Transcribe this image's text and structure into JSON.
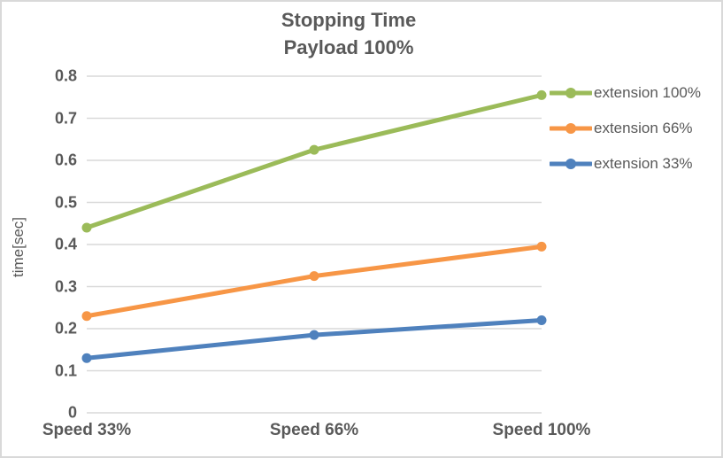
{
  "colors": {
    "text": "#595959",
    "grid": "#d9d9d9",
    "border": "#d9d9d9",
    "background": "#ffffff"
  },
  "chart_data": {
    "type": "line",
    "title": "Stopping Time",
    "subtitle": "Payload 100%",
    "ylabel": "time[sec]",
    "xlabel": "",
    "categories": [
      "Speed 33%",
      "Speed 66%",
      "Speed 100%"
    ],
    "series": [
      {
        "name": "extension 100%",
        "color": "#9bbb59",
        "values": [
          0.44,
          0.625,
          0.755
        ]
      },
      {
        "name": "extension 66%",
        "color": "#f79646",
        "values": [
          0.23,
          0.325,
          0.395
        ]
      },
      {
        "name": "extension 33%",
        "color": "#4f81bd",
        "values": [
          0.13,
          0.185,
          0.22
        ]
      }
    ],
    "ylim": [
      0,
      0.8
    ],
    "yticks": [
      "0",
      "0.1",
      "0.2",
      "0.3",
      "0.4",
      "0.5",
      "0.6",
      "0.7",
      "0.8"
    ],
    "grid": true,
    "legend_position": "right",
    "marker": "circle"
  }
}
